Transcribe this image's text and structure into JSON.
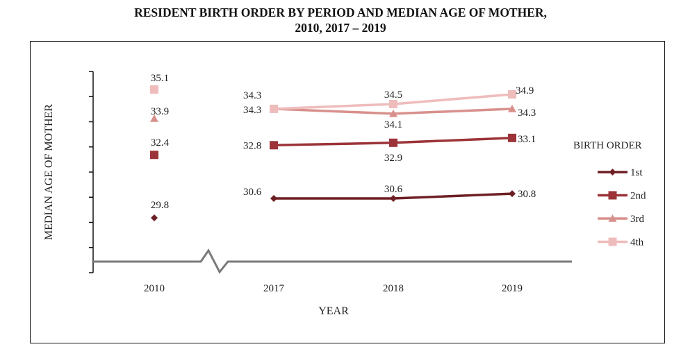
{
  "title_line1": "RESIDENT BIRTH ORDER BY PERIOD AND MEDIAN AGE OF MOTHER,",
  "title_line2": "2010, 2017 – 2019",
  "chart_data": {
    "type": "line",
    "xlabel": "YEAR",
    "ylabel": "MEDIAN AGE OF MOTHER",
    "categories": [
      "2010",
      "2017",
      "2018",
      "2019"
    ],
    "axis_break_between": [
      "2010",
      "2017"
    ],
    "y_tick_count": 8,
    "ylim": [
      28,
      36
    ],
    "legend_title": "BIRTH ORDER",
    "legend_position": "right",
    "grid": false,
    "series": [
      {
        "name": "1st",
        "marker": "diamond",
        "color": "#6e1f24",
        "values": [
          29.8,
          30.6,
          30.6,
          30.8
        ],
        "labels": [
          "29.8",
          "30.6",
          "30.6",
          "30.8"
        ]
      },
      {
        "name": "2nd",
        "marker": "square",
        "color": "#9b3338",
        "values": [
          32.4,
          32.8,
          32.9,
          33.1
        ],
        "labels": [
          "32.4",
          "32.8",
          "32.9",
          "33.1"
        ]
      },
      {
        "name": "3rd",
        "marker": "triangle",
        "color": "#d8908c",
        "values": [
          33.9,
          34.3,
          34.1,
          34.3
        ],
        "labels": [
          "33.9",
          "34.3",
          "34.1",
          "34.3"
        ]
      },
      {
        "name": "4th",
        "marker": "square",
        "color": "#efbcbc",
        "values": [
          35.1,
          34.3,
          34.5,
          34.9
        ],
        "labels": [
          "35.1",
          "34.3",
          "34.5",
          "34.9"
        ]
      }
    ]
  }
}
